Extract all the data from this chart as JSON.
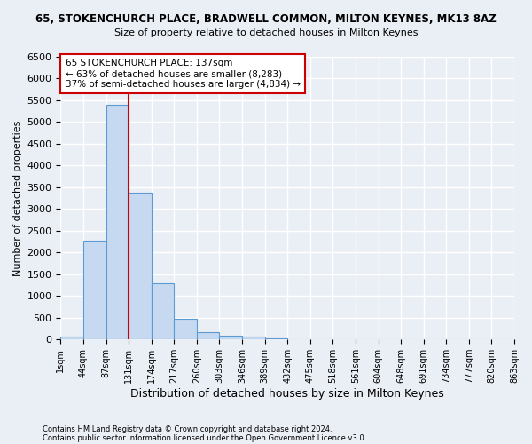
{
  "title_top": "65, STOKENCHURCH PLACE, BRADWELL COMMON, MILTON KEYNES, MK13 8AZ",
  "title_sub": "Size of property relative to detached houses in Milton Keynes",
  "xlabel": "Distribution of detached houses by size in Milton Keynes",
  "ylabel": "Number of detached properties",
  "footnote1": "Contains HM Land Registry data © Crown copyright and database right 2024.",
  "footnote2": "Contains public sector information licensed under the Open Government Licence v3.0.",
  "bin_labels": [
    "1sqm",
    "44sqm",
    "87sqm",
    "131sqm",
    "174sqm",
    "217sqm",
    "260sqm",
    "303sqm",
    "346sqm",
    "389sqm",
    "432sqm",
    "475sqm",
    "518sqm",
    "561sqm",
    "604sqm",
    "648sqm",
    "691sqm",
    "734sqm",
    "777sqm",
    "820sqm",
    "863sqm"
  ],
  "bar_values": [
    75,
    2280,
    5400,
    3380,
    1300,
    480,
    160,
    80,
    60,
    20,
    10,
    5,
    3,
    2,
    1,
    1,
    0,
    0,
    0,
    0
  ],
  "bar_color": "#c6d9f0",
  "bar_edge_color": "#5b9bd5",
  "red_line_x": 3,
  "red_line_color": "#cc0000",
  "annotation_text": "65 STOKENCHURCH PLACE: 137sqm\n← 63% of detached houses are smaller (8,283)\n37% of semi-detached houses are larger (4,834) →",
  "annotation_box_color": "#ffffff",
  "annotation_box_edge_color": "#cc0000",
  "ylim": [
    0,
    6500
  ],
  "yticks": [
    0,
    500,
    1000,
    1500,
    2000,
    2500,
    3000,
    3500,
    4000,
    4500,
    5000,
    5500,
    6000,
    6500
  ],
  "bg_color": "#eaeef5",
  "grid_color": "#ffffff"
}
